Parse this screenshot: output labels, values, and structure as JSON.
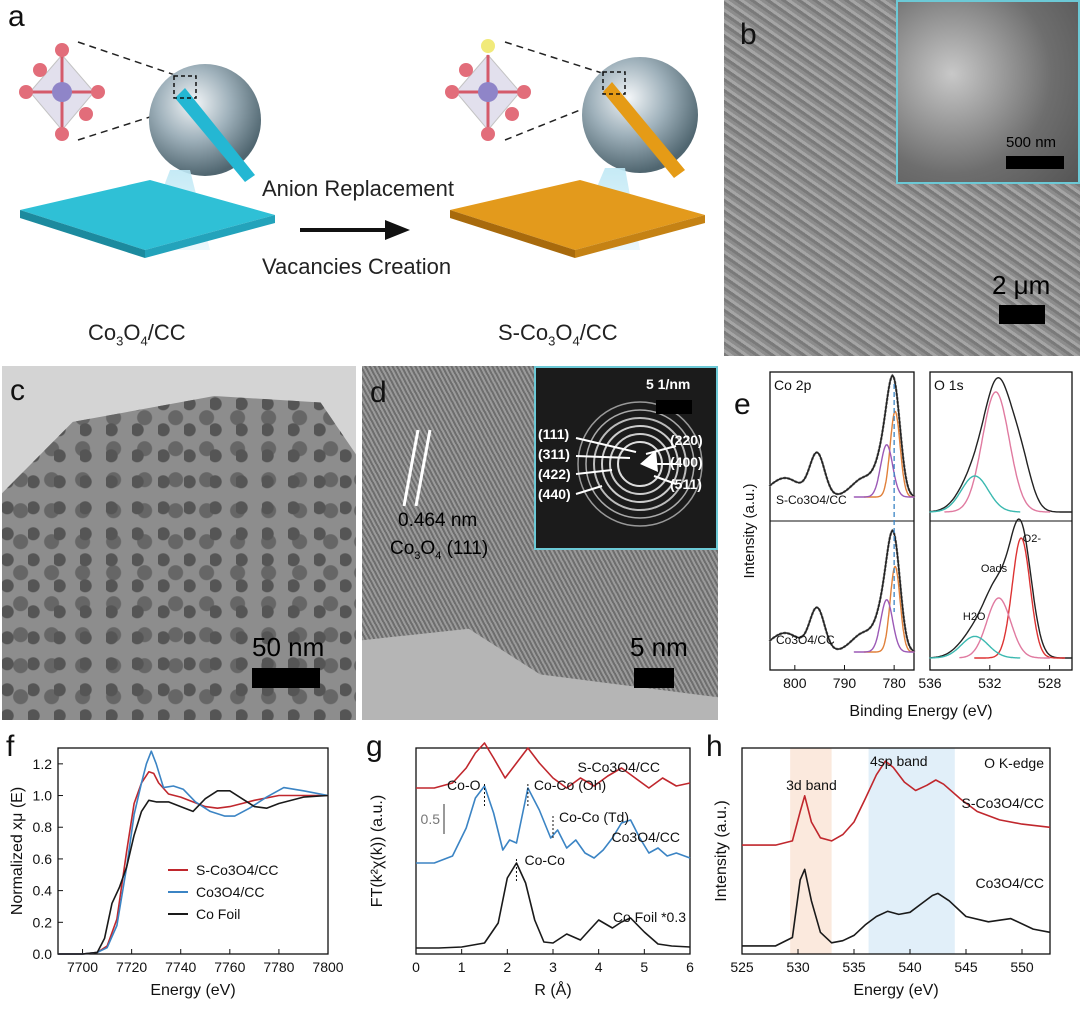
{
  "figure": {
    "panels": {
      "a": {
        "letter": "a",
        "left_label": "Co",
        "left_sub3": "3",
        "left_o": "O",
        "left_sub4": "4",
        "left_tail": "/CC",
        "right_label": "S-Co",
        "right_sub3": "3",
        "right_o": "O",
        "right_sub4": "4",
        "right_tail": "/CC",
        "arrow_top": "Anion Replacement",
        "arrow_bottom": "Vacancies Creation"
      },
      "b": {
        "letter": "b",
        "scale_main": "2 μm",
        "scale_inset": "500 nm"
      },
      "c": {
        "letter": "c",
        "scale": "50 nm"
      },
      "d": {
        "letter": "d",
        "scale": "5 nm",
        "d_spacing": "0.464 nm",
        "phase": "Co",
        "phase_sub3": "3",
        "phase_o": "O",
        "phase_sub4": "4",
        "phase_plane": " (111)",
        "saed_scale": "5 1/nm",
        "rings_left": [
          "(111)",
          "(311)",
          "(422)",
          "(440)"
        ],
        "rings_right": [
          "(220)",
          "(400)",
          "(511)"
        ]
      },
      "e": {
        "letter": "e"
      },
      "f": {
        "letter": "f"
      },
      "g": {
        "letter": "g"
      },
      "h": {
        "letter": "h"
      }
    }
  },
  "chart_data": [
    {
      "id": "e",
      "type": "line",
      "ylabel": "Intensity (a.u.)",
      "xlabel": "Binding Energy (eV)",
      "subplots": [
        {
          "title": "Co 2p",
          "xlim": [
            805,
            776
          ],
          "xticks": [
            800,
            790,
            780
          ],
          "series": [
            {
              "name": "S-Co3O4/CC"
            },
            {
              "name": "Co3O4/CC"
            }
          ],
          "peaks_eV": [
            780.0,
            781.6,
            786.0,
            795.5
          ]
        },
        {
          "title": "O 1s",
          "xlim": [
            536,
            526.5
          ],
          "xticks": [
            536,
            532,
            528
          ],
          "annotations": [
            "H2O",
            "Oads",
            "O2-"
          ],
          "peaks_eV": [
            529.9,
            531.4,
            533.0
          ]
        }
      ]
    },
    {
      "id": "f",
      "type": "line",
      "xlabel": "Energy (eV)",
      "ylabel": "Normalized xμ (E)",
      "xlim": [
        7690,
        7800
      ],
      "ylim": [
        0,
        1.3
      ],
      "xticks": [
        7700,
        7720,
        7740,
        7760,
        7780,
        7800
      ],
      "yticks": [
        0.0,
        0.2,
        0.4,
        0.6,
        0.8,
        1.0,
        1.2
      ],
      "legend": "bottom-center",
      "series": [
        {
          "name": "S-Co3O4/CC",
          "color": "#c0272d",
          "x": [
            7690,
            7700,
            7706,
            7710,
            7714,
            7718,
            7721,
            7724,
            7727,
            7729,
            7731,
            7735,
            7740,
            7745,
            7750,
            7755,
            7760,
            7765,
            7770,
            7780,
            7790,
            7800
          ],
          "y": [
            0.0,
            0.0,
            0.01,
            0.05,
            0.22,
            0.65,
            0.95,
            1.08,
            1.15,
            1.14,
            1.08,
            1.01,
            0.99,
            0.96,
            0.93,
            0.92,
            0.93,
            0.95,
            0.97,
            1.0,
            1.0,
            1.0
          ]
        },
        {
          "name": "Co3O4/CC",
          "color": "#3b84c4",
          "x": [
            7690,
            7700,
            7706,
            7710,
            7714,
            7718,
            7721,
            7724,
            7726,
            7728,
            7730,
            7733,
            7737,
            7741,
            7746,
            7752,
            7758,
            7762,
            7768,
            7775,
            7782,
            7790,
            7800
          ],
          "y": [
            0.0,
            0.0,
            0.01,
            0.04,
            0.18,
            0.55,
            0.88,
            1.08,
            1.2,
            1.28,
            1.2,
            1.05,
            1.06,
            1.04,
            0.96,
            0.9,
            0.87,
            0.87,
            0.92,
            0.99,
            1.05,
            1.03,
            1.0
          ]
        },
        {
          "name": "Co Foil",
          "color": "#1a1a1a",
          "x": [
            7690,
            7700,
            7706,
            7709,
            7712,
            7715,
            7718,
            7721,
            7724,
            7727,
            7730,
            7735,
            7740,
            7745,
            7750,
            7755,
            7760,
            7765,
            7770,
            7775,
            7780,
            7790,
            7800
          ],
          "y": [
            0.0,
            0.0,
            0.01,
            0.1,
            0.32,
            0.42,
            0.55,
            0.75,
            0.9,
            0.97,
            0.96,
            0.96,
            0.93,
            0.9,
            0.98,
            1.03,
            1.03,
            0.98,
            0.93,
            0.92,
            0.95,
            0.99,
            1.0
          ]
        }
      ]
    },
    {
      "id": "g",
      "type": "line",
      "xlabel": "R (Å)",
      "ylabel": "FT(k²χ(k)) (a.u.)",
      "xlim": [
        0,
        6
      ],
      "xticks": [
        0,
        1,
        2,
        3,
        4,
        5,
        6
      ],
      "scale_bar": "0.5",
      "annotations": [
        "Co-O",
        "Co-Co (Oh)",
        "Co-Co (Td)",
        "Co-Co"
      ],
      "series": [
        {
          "name": "S-Co3O4/CC",
          "color": "#c0272d",
          "x": [
            0,
            0.4,
            0.8,
            1.1,
            1.3,
            1.5,
            1.7,
            1.95,
            2.2,
            2.45,
            2.7,
            3.0,
            3.3,
            3.6,
            3.9,
            4.2,
            4.5,
            4.8,
            5.1,
            5.4,
            5.7,
            6.0
          ],
          "y": [
            1.6,
            1.6,
            1.65,
            1.8,
            1.95,
            2.05,
            1.9,
            1.7,
            1.85,
            2.0,
            1.85,
            1.7,
            1.6,
            1.7,
            1.62,
            1.72,
            1.8,
            1.7,
            1.6,
            1.7,
            1.62,
            1.65
          ]
        },
        {
          "name": "Co3O4/CC",
          "color": "#3b84c4",
          "x": [
            0,
            0.4,
            0.8,
            1.1,
            1.3,
            1.5,
            1.7,
            1.9,
            2.05,
            2.2,
            2.45,
            2.7,
            2.95,
            3.1,
            3.3,
            3.5,
            3.7,
            3.9,
            4.1,
            4.3,
            4.5,
            4.7,
            4.9,
            5.1,
            5.3,
            5.5,
            5.7,
            6.0
          ],
          "y": [
            0.85,
            0.85,
            0.92,
            1.2,
            1.5,
            1.62,
            1.35,
            0.98,
            1.08,
            1.05,
            1.6,
            1.38,
            1.1,
            1.18,
            1.0,
            1.08,
            0.95,
            0.9,
            0.98,
            1.1,
            1.25,
            1.28,
            1.1,
            0.95,
            1.0,
            0.92,
            0.95,
            0.9
          ]
        },
        {
          "name": "Co Foil *0.3",
          "color": "#1a1a1a",
          "x": [
            0,
            0.5,
            1.0,
            1.5,
            1.8,
            2.0,
            2.2,
            2.4,
            2.6,
            2.8,
            3.0,
            3.3,
            3.6,
            3.8,
            4.0,
            4.3,
            4.5,
            4.7,
            5.0,
            5.3,
            5.6,
            6.0
          ],
          "y": [
            0,
            0,
            0.01,
            0.05,
            0.25,
            0.7,
            0.85,
            0.65,
            0.28,
            0.06,
            0.05,
            0.14,
            0.08,
            0.18,
            0.28,
            0.2,
            0.26,
            0.3,
            0.16,
            0.04,
            0.02,
            0.01
          ]
        }
      ]
    },
    {
      "id": "h",
      "type": "line",
      "xlabel": "Energy (eV)",
      "ylabel": "Intensity (a.u.)",
      "title": "O K-edge",
      "xlim": [
        525,
        552.5
      ],
      "xticks": [
        525,
        530,
        535,
        540,
        545,
        550
      ],
      "bands": [
        {
          "label": "3d band",
          "from": 529.3,
          "to": 533.0,
          "color": "#fbe9dd"
        },
        {
          "label": "4sp band",
          "from": 536.3,
          "to": 544.0,
          "color": "#e1eff9"
        }
      ],
      "series": [
        {
          "name": "S-Co3O4/CC",
          "color": "#c0272d",
          "x": [
            525,
            528,
            529.5,
            530.2,
            530.6,
            531.2,
            532,
            533,
            534,
            535,
            536,
            537,
            537.8,
            538.5,
            539.5,
            540.5,
            541.5,
            542.3,
            543,
            544.5,
            546,
            548,
            550,
            552.5
          ],
          "y": [
            0.98,
            0.98,
            1.02,
            1.3,
            1.45,
            1.2,
            1.05,
            1.02,
            1.08,
            1.2,
            1.42,
            1.65,
            1.78,
            1.72,
            1.58,
            1.5,
            1.55,
            1.6,
            1.56,
            1.42,
            1.3,
            1.22,
            1.18,
            1.15
          ]
        },
        {
          "name": "Co3O4/CC",
          "color": "#1a1a1a",
          "x": [
            525,
            528,
            529.5,
            530.2,
            530.6,
            531.2,
            532,
            533,
            534,
            535,
            536,
            537,
            538,
            539,
            540,
            541,
            542,
            542.5,
            543.5,
            545,
            547,
            549,
            551,
            552.5
          ],
          "y": [
            0.02,
            0.02,
            0.1,
            0.65,
            0.75,
            0.45,
            0.15,
            0.05,
            0.07,
            0.12,
            0.22,
            0.3,
            0.35,
            0.32,
            0.34,
            0.42,
            0.5,
            0.52,
            0.45,
            0.3,
            0.25,
            0.28,
            0.18,
            0.15
          ]
        }
      ]
    }
  ]
}
